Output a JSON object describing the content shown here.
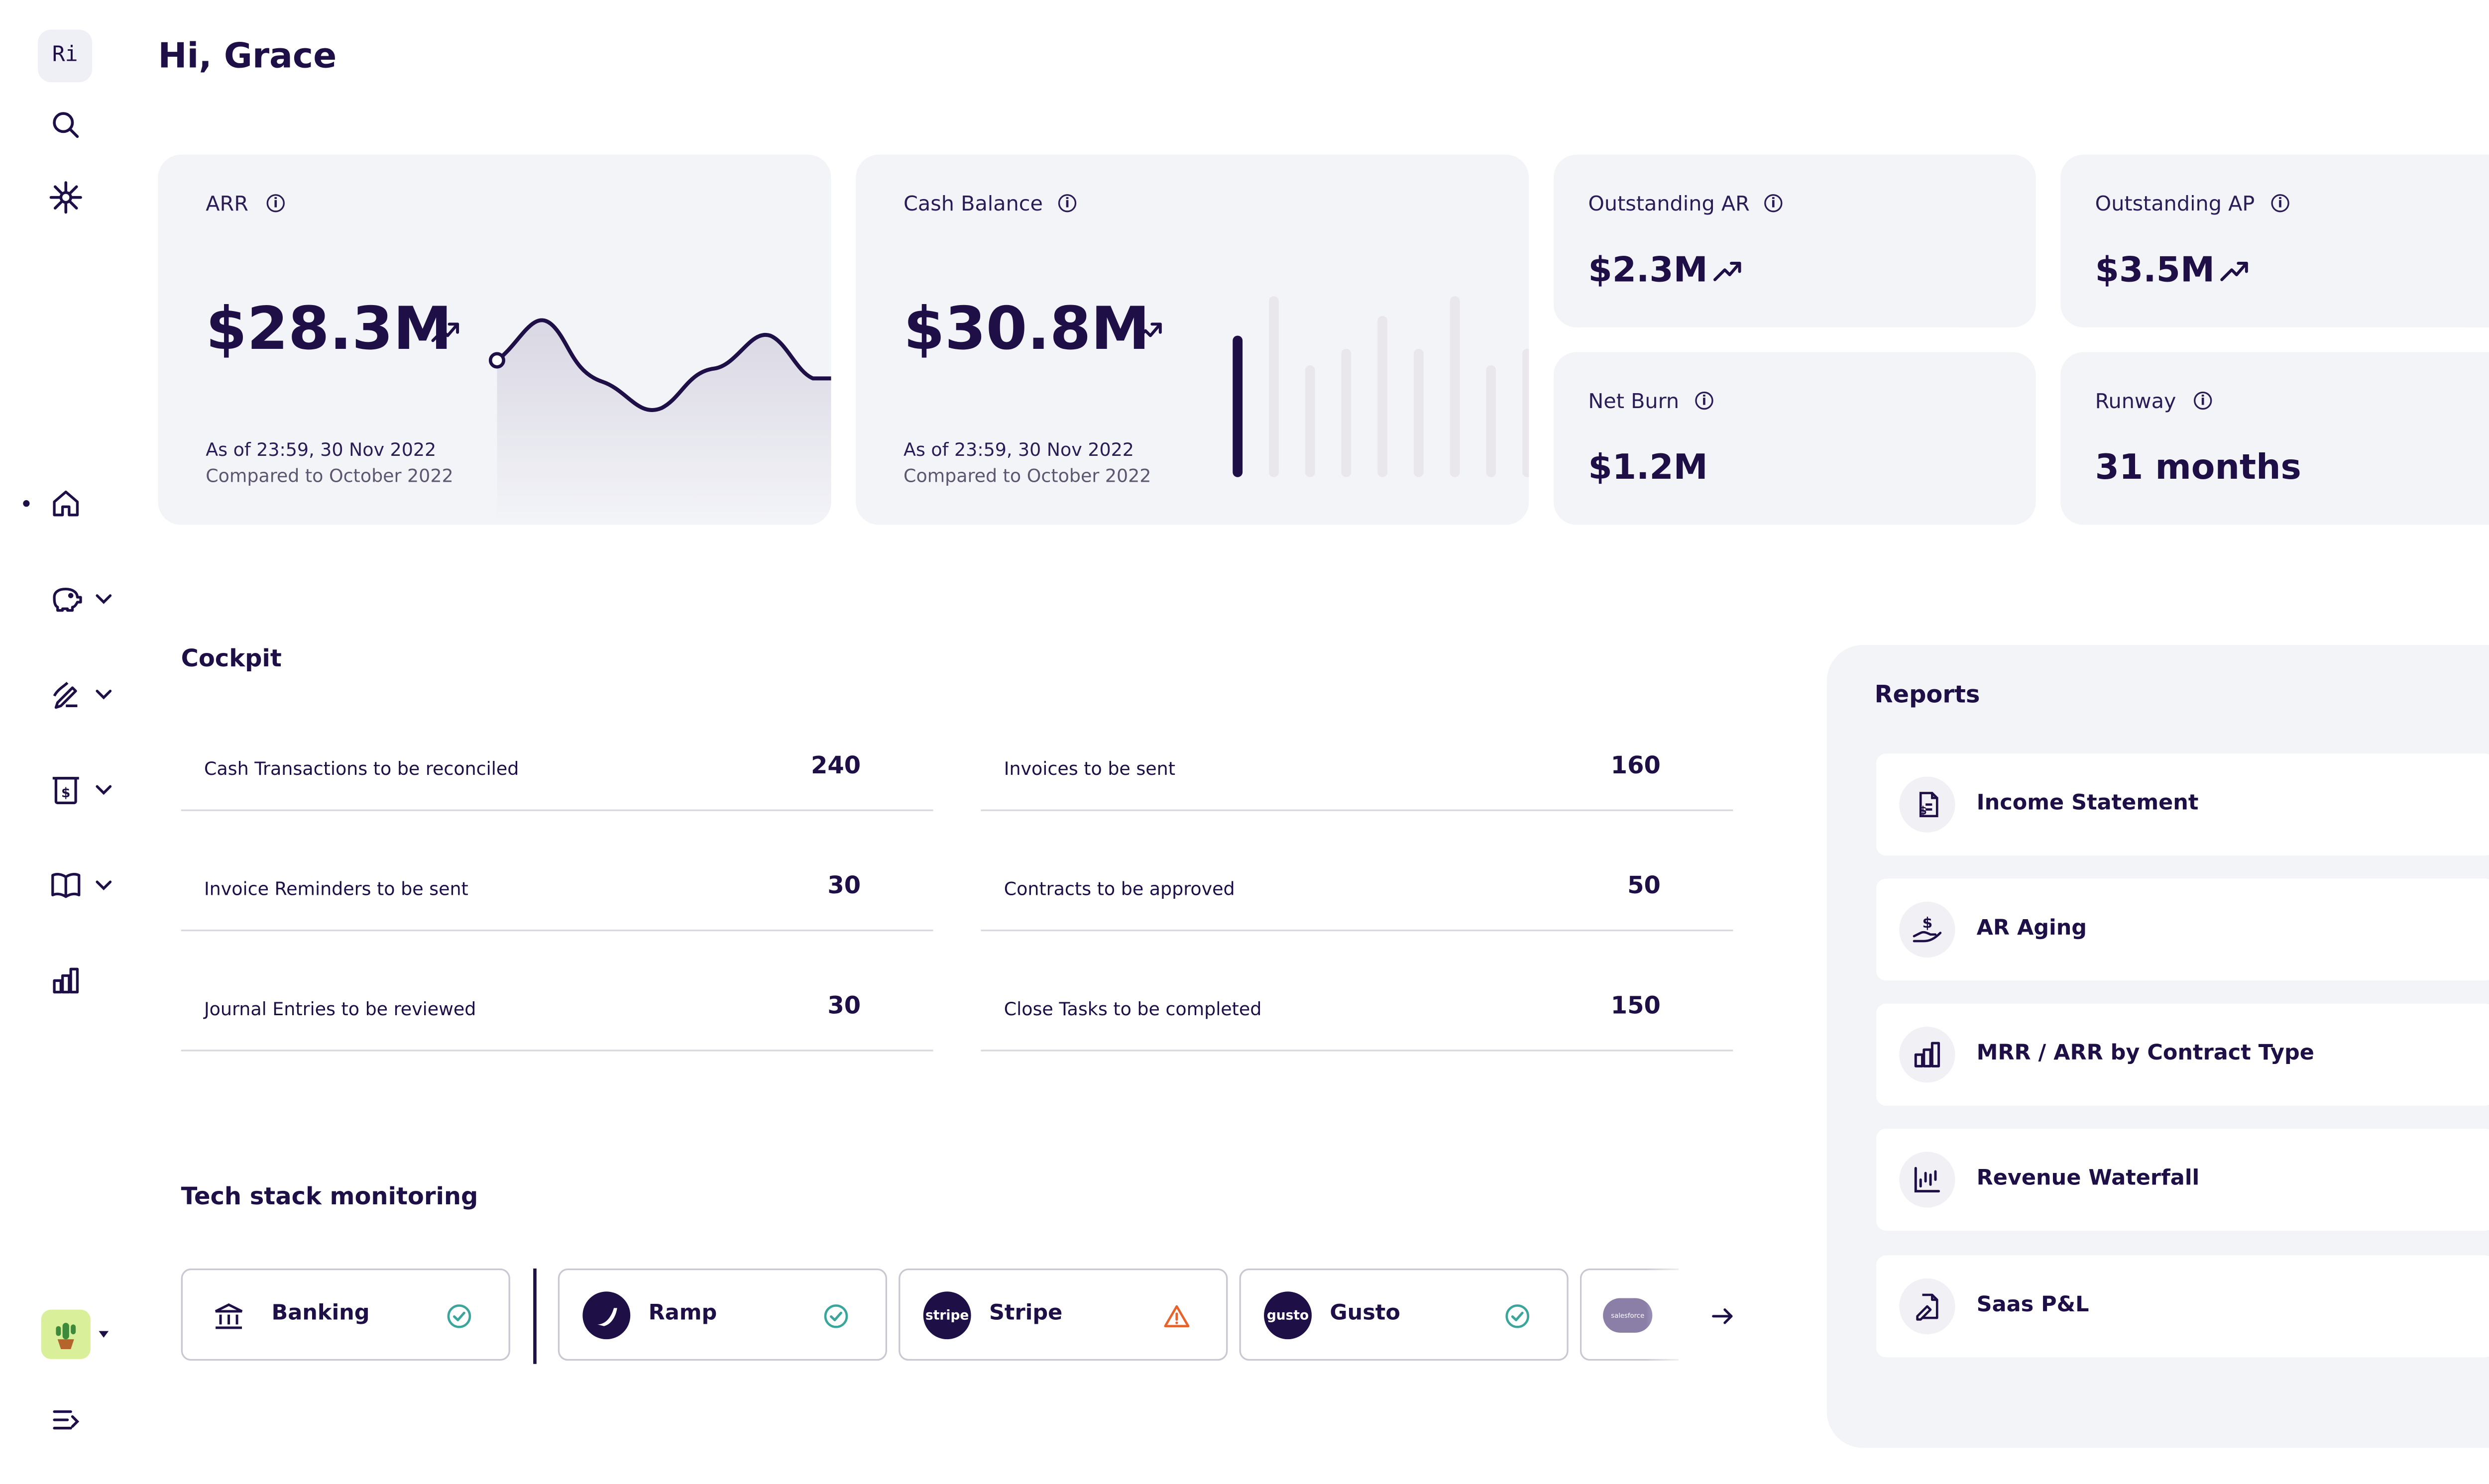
{
  "greeting": "Hi, Grace",
  "sidebar": {
    "logo": "Ri",
    "icons": [
      "search-icon",
      "snowflake-icon",
      "home-icon",
      "piggy-bank-icon",
      "signature-icon",
      "receipt-icon",
      "book-icon",
      "bar-chart-icon",
      "collapse-menu-icon"
    ],
    "active_item": "home"
  },
  "metrics": {
    "arr": {
      "label": "ARR",
      "value": "$28.3M",
      "as_of": "As of 23:59, 30 Nov 2022",
      "compared": "Compared to October 2022"
    },
    "cash": {
      "label": "Cash Balance",
      "value": "$30.8M",
      "as_of": "As of 23:59, 30 Nov 2022",
      "compared": "Compared to October 2022"
    },
    "outstanding_ar": {
      "label": "Outstanding AR",
      "value": "$2.3M"
    },
    "outstanding_ap": {
      "label": "Outstanding AP",
      "value": "$3.5M"
    },
    "net_burn": {
      "label": "Net Burn",
      "value": "$1.2M"
    },
    "runway": {
      "label": "Runway",
      "value": "31 months"
    }
  },
  "cockpit": {
    "title": "Cockpit",
    "left": [
      {
        "label": "Cash Transactions to be reconciled",
        "value": "240"
      },
      {
        "label": "Invoice Reminders to be sent",
        "value": "30"
      },
      {
        "label": "Journal Entries to be reviewed",
        "value": "30"
      }
    ],
    "right": [
      {
        "label": "Invoices to be sent",
        "value": "160"
      },
      {
        "label": "Contracts to be approved",
        "value": "50"
      },
      {
        "label": "Close Tasks to be completed",
        "value": "150"
      }
    ]
  },
  "tech_stack": {
    "title": "Tech stack monitoring",
    "items": [
      {
        "name": "Banking",
        "status": "ok"
      },
      {
        "name": "Ramp",
        "status": "ok"
      },
      {
        "name": "Stripe",
        "status": "warning",
        "logo_text": "stripe"
      },
      {
        "name": "Gusto",
        "status": "ok",
        "logo_text": "gusto"
      }
    ],
    "partial_logo_text": "salesforce"
  },
  "reports": {
    "title": "Reports",
    "items": [
      {
        "label": "Income Statement",
        "icon": "document-dollar-icon"
      },
      {
        "label": "AR Aging",
        "icon": "hand-dollar-icon"
      },
      {
        "label": "MRR / ARR by Contract Type",
        "icon": "bar-chart-icon"
      },
      {
        "label": "Revenue Waterfall",
        "icon": "waterfall-chart-icon"
      },
      {
        "label": "Saas P&L",
        "icon": "document-sign-icon"
      }
    ]
  },
  "colors": {
    "primary": "#1e0f47",
    "card_bg": "#f3f4f8",
    "ok": "#3aa59a",
    "warning": "#e8622c"
  }
}
